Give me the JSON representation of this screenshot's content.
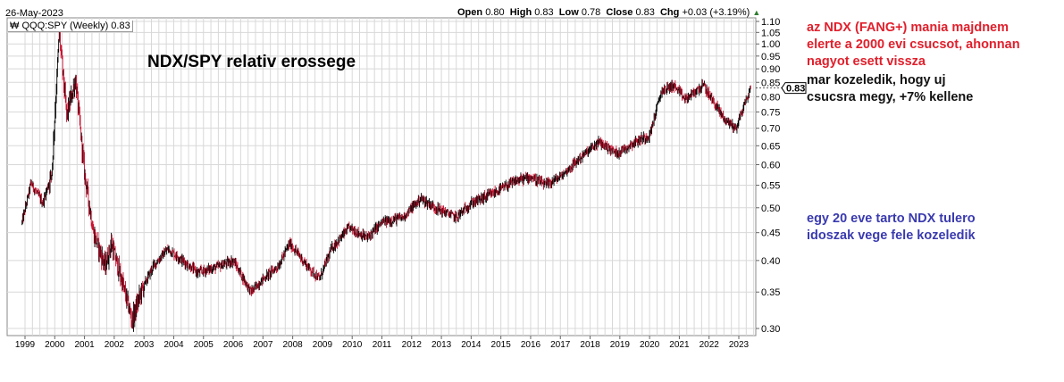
{
  "header": {
    "date": "26-May-2023",
    "symbol_label": "QQQ:SPY (Weekly) 0.83",
    "open_label": "Open",
    "open": "0.80",
    "high_label": "High",
    "high": "0.83",
    "low_label": "Low",
    "low": "0.78",
    "close_label": "Close",
    "close": "0.83",
    "chg_label": "Chg",
    "chg": "+0.03 (+3.19%)"
  },
  "annotations": {
    "title": "NDX/SPY relativ erossege",
    "note1": [
      "az NDX (FANG+) mania majdnem",
      "elerte a 2000 evi csucsot, ahonnan",
      "nagyot esett vissza"
    ],
    "note2": [
      "mar kozeledik, hogy uj",
      "csucsra megy, +7% kellene"
    ],
    "note3": [
      "egy 20 eve tarto NDX tulero",
      "idoszak vege fele kozeledik"
    ]
  },
  "colors": {
    "up": "#000000",
    "down": "#c8102e",
    "grid": "#d8d8d8",
    "note1": "#e0202c",
    "note3": "#3a3ab0"
  },
  "chart_data": {
    "type": "candlestick",
    "title": "QQQ:SPY (Weekly)",
    "scale": "log",
    "ylim": [
      0.295,
      1.12
    ],
    "xlim": [
      1998.6,
      2023.6
    ],
    "y_ticks": [
      "0.30",
      "0.35",
      "0.40",
      "0.45",
      "0.50",
      "0.55",
      "0.60",
      "0.65",
      "0.70",
      "0.75",
      "0.80",
      "0.85",
      "0.90",
      "0.95",
      "1.00",
      "1.05",
      "1.10"
    ],
    "x_ticks": [
      "1999",
      "2000",
      "2001",
      "2002",
      "2003",
      "2004",
      "2005",
      "2006",
      "2007",
      "2008",
      "2009",
      "2010",
      "2011",
      "2012",
      "2013",
      "2014",
      "2015",
      "2016",
      "2017",
      "2018",
      "2019",
      "2020",
      "2021",
      "2022",
      "2023"
    ],
    "last_value": "0.83",
    "anchors": [
      [
        1998.9,
        0.47
      ],
      [
        1999.2,
        0.555
      ],
      [
        1999.6,
        0.51
      ],
      [
        1999.9,
        0.58
      ],
      [
        2000.15,
        1.05
      ],
      [
        2000.4,
        0.74
      ],
      [
        2000.7,
        0.86
      ],
      [
        2001.0,
        0.58
      ],
      [
        2001.3,
        0.45
      ],
      [
        2001.7,
        0.39
      ],
      [
        2001.9,
        0.43
      ],
      [
        2002.3,
        0.36
      ],
      [
        2002.6,
        0.31
      ],
      [
        2002.9,
        0.35
      ],
      [
        2003.3,
        0.39
      ],
      [
        2003.8,
        0.42
      ],
      [
        2004.3,
        0.4
      ],
      [
        2004.8,
        0.38
      ],
      [
        2005.5,
        0.39
      ],
      [
        2006.0,
        0.4
      ],
      [
        2006.6,
        0.35
      ],
      [
        2007.0,
        0.37
      ],
      [
        2007.5,
        0.39
      ],
      [
        2007.9,
        0.43
      ],
      [
        2008.5,
        0.39
      ],
      [
        2008.9,
        0.37
      ],
      [
        2009.3,
        0.42
      ],
      [
        2009.9,
        0.46
      ],
      [
        2010.5,
        0.44
      ],
      [
        2011.0,
        0.47
      ],
      [
        2011.7,
        0.48
      ],
      [
        2012.3,
        0.52
      ],
      [
        2012.8,
        0.5
      ],
      [
        2013.5,
        0.48
      ],
      [
        2014.0,
        0.51
      ],
      [
        2014.7,
        0.53
      ],
      [
        2015.5,
        0.56
      ],
      [
        2016.0,
        0.57
      ],
      [
        2016.5,
        0.55
      ],
      [
        2017.0,
        0.57
      ],
      [
        2017.7,
        0.62
      ],
      [
        2018.3,
        0.66
      ],
      [
        2018.9,
        0.63
      ],
      [
        2019.5,
        0.66
      ],
      [
        2020.0,
        0.68
      ],
      [
        2020.4,
        0.82
      ],
      [
        2020.8,
        0.84
      ],
      [
        2021.2,
        0.79
      ],
      [
        2021.8,
        0.84
      ],
      [
        2022.1,
        0.79
      ],
      [
        2022.5,
        0.73
      ],
      [
        2022.9,
        0.7
      ],
      [
        2023.1,
        0.75
      ],
      [
        2023.4,
        0.83
      ]
    ]
  }
}
